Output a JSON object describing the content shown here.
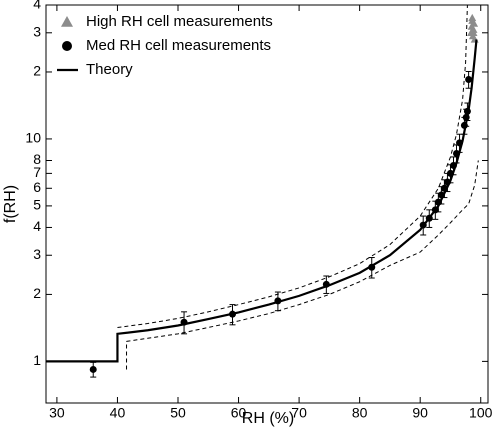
{
  "chart_data": {
    "type": "scatter",
    "x_label": "RH (%)",
    "y_label": "f(RH)",
    "log_y": true,
    "xlim": [
      28.2,
      101.2
    ],
    "ylim": [
      0.65,
      40
    ],
    "xticks": [
      30,
      40,
      50,
      60,
      70,
      80,
      90,
      100
    ],
    "yticks": [
      1,
      2,
      3,
      4,
      5,
      6,
      7,
      8,
      10,
      {
        "value": 20,
        "label": "2"
      },
      {
        "value": 30,
        "label": "3"
      },
      {
        "value": 40,
        "label": "4"
      }
    ],
    "series": [
      {
        "name": "High RH cell measurements",
        "color": "#8c8c8c",
        "marker": "triangle",
        "x": [
          98.4,
          98.5,
          98.6,
          98.7,
          98.8,
          98.9,
          99.0,
          98.6,
          98.8
        ],
        "values": [
          30,
          32,
          34,
          29,
          31,
          33,
          28,
          35,
          30
        ]
      },
      {
        "name": "Med RH cell measurements",
        "color": "#000000",
        "marker": "circle",
        "x": [
          36,
          51,
          59,
          66.5,
          74.5,
          82,
          90.5,
          91.5,
          92.5,
          93,
          93.5,
          94,
          94.5,
          95,
          95.5,
          96,
          96.5,
          97.3,
          97.6,
          97.8,
          98
        ],
        "values": [
          0.92,
          1.5,
          1.63,
          1.87,
          2.22,
          2.65,
          4.1,
          4.4,
          4.8,
          5.2,
          5.6,
          6.0,
          6.4,
          7.0,
          7.6,
          8.6,
          9.6,
          11.5,
          12.5,
          13.3,
          18.5
        ],
        "errors": [
          0.07,
          0.17,
          0.17,
          0.18,
          0.2,
          0.28,
          0.4,
          0.4,
          0.45,
          0.5,
          0.5,
          0.55,
          0.6,
          0.65,
          0.7,
          0.8,
          0.9,
          1.0,
          1.1,
          1.2,
          1.6
        ]
      },
      {
        "name": "Theory",
        "color": "#000000",
        "marker": "line",
        "x": [
          28.2,
          40,
          40,
          45,
          50,
          55,
          60,
          65,
          70,
          75,
          80,
          85,
          90,
          93,
          95,
          96,
          97,
          98,
          98.5,
          99,
          99.3
        ],
        "values": [
          1,
          1,
          1.33,
          1.38,
          1.45,
          1.55,
          1.66,
          1.8,
          1.97,
          2.2,
          2.5,
          3.0,
          3.9,
          5.0,
          6.5,
          7.8,
          9.8,
          13.5,
          17,
          23,
          28
        ]
      },
      {
        "color": "#000000",
        "marker": "dash",
        "x": [
          40,
          45,
          50,
          55,
          60,
          65,
          70,
          75,
          80,
          85,
          90,
          93,
          95,
          96,
          97,
          97.5,
          97.8
        ],
        "values": [
          1.42,
          1.48,
          1.56,
          1.67,
          1.8,
          1.95,
          2.14,
          2.4,
          2.75,
          3.35,
          4.5,
          6.0,
          8.3,
          10.5,
          15,
          22,
          40
        ]
      },
      {
        "color": "#000000",
        "marker": "dash",
        "x": [
          41.5,
          41.5,
          45,
          50,
          55,
          60,
          65,
          70,
          75,
          80,
          85,
          90,
          93,
          95,
          97,
          98,
          99,
          99.6
        ],
        "values": [
          0.92,
          1.23,
          1.27,
          1.33,
          1.42,
          1.52,
          1.64,
          1.8,
          2.0,
          2.28,
          2.7,
          3.1,
          3.7,
          4.2,
          4.8,
          5.1,
          6.2,
          8.0
        ]
      }
    ]
  }
}
